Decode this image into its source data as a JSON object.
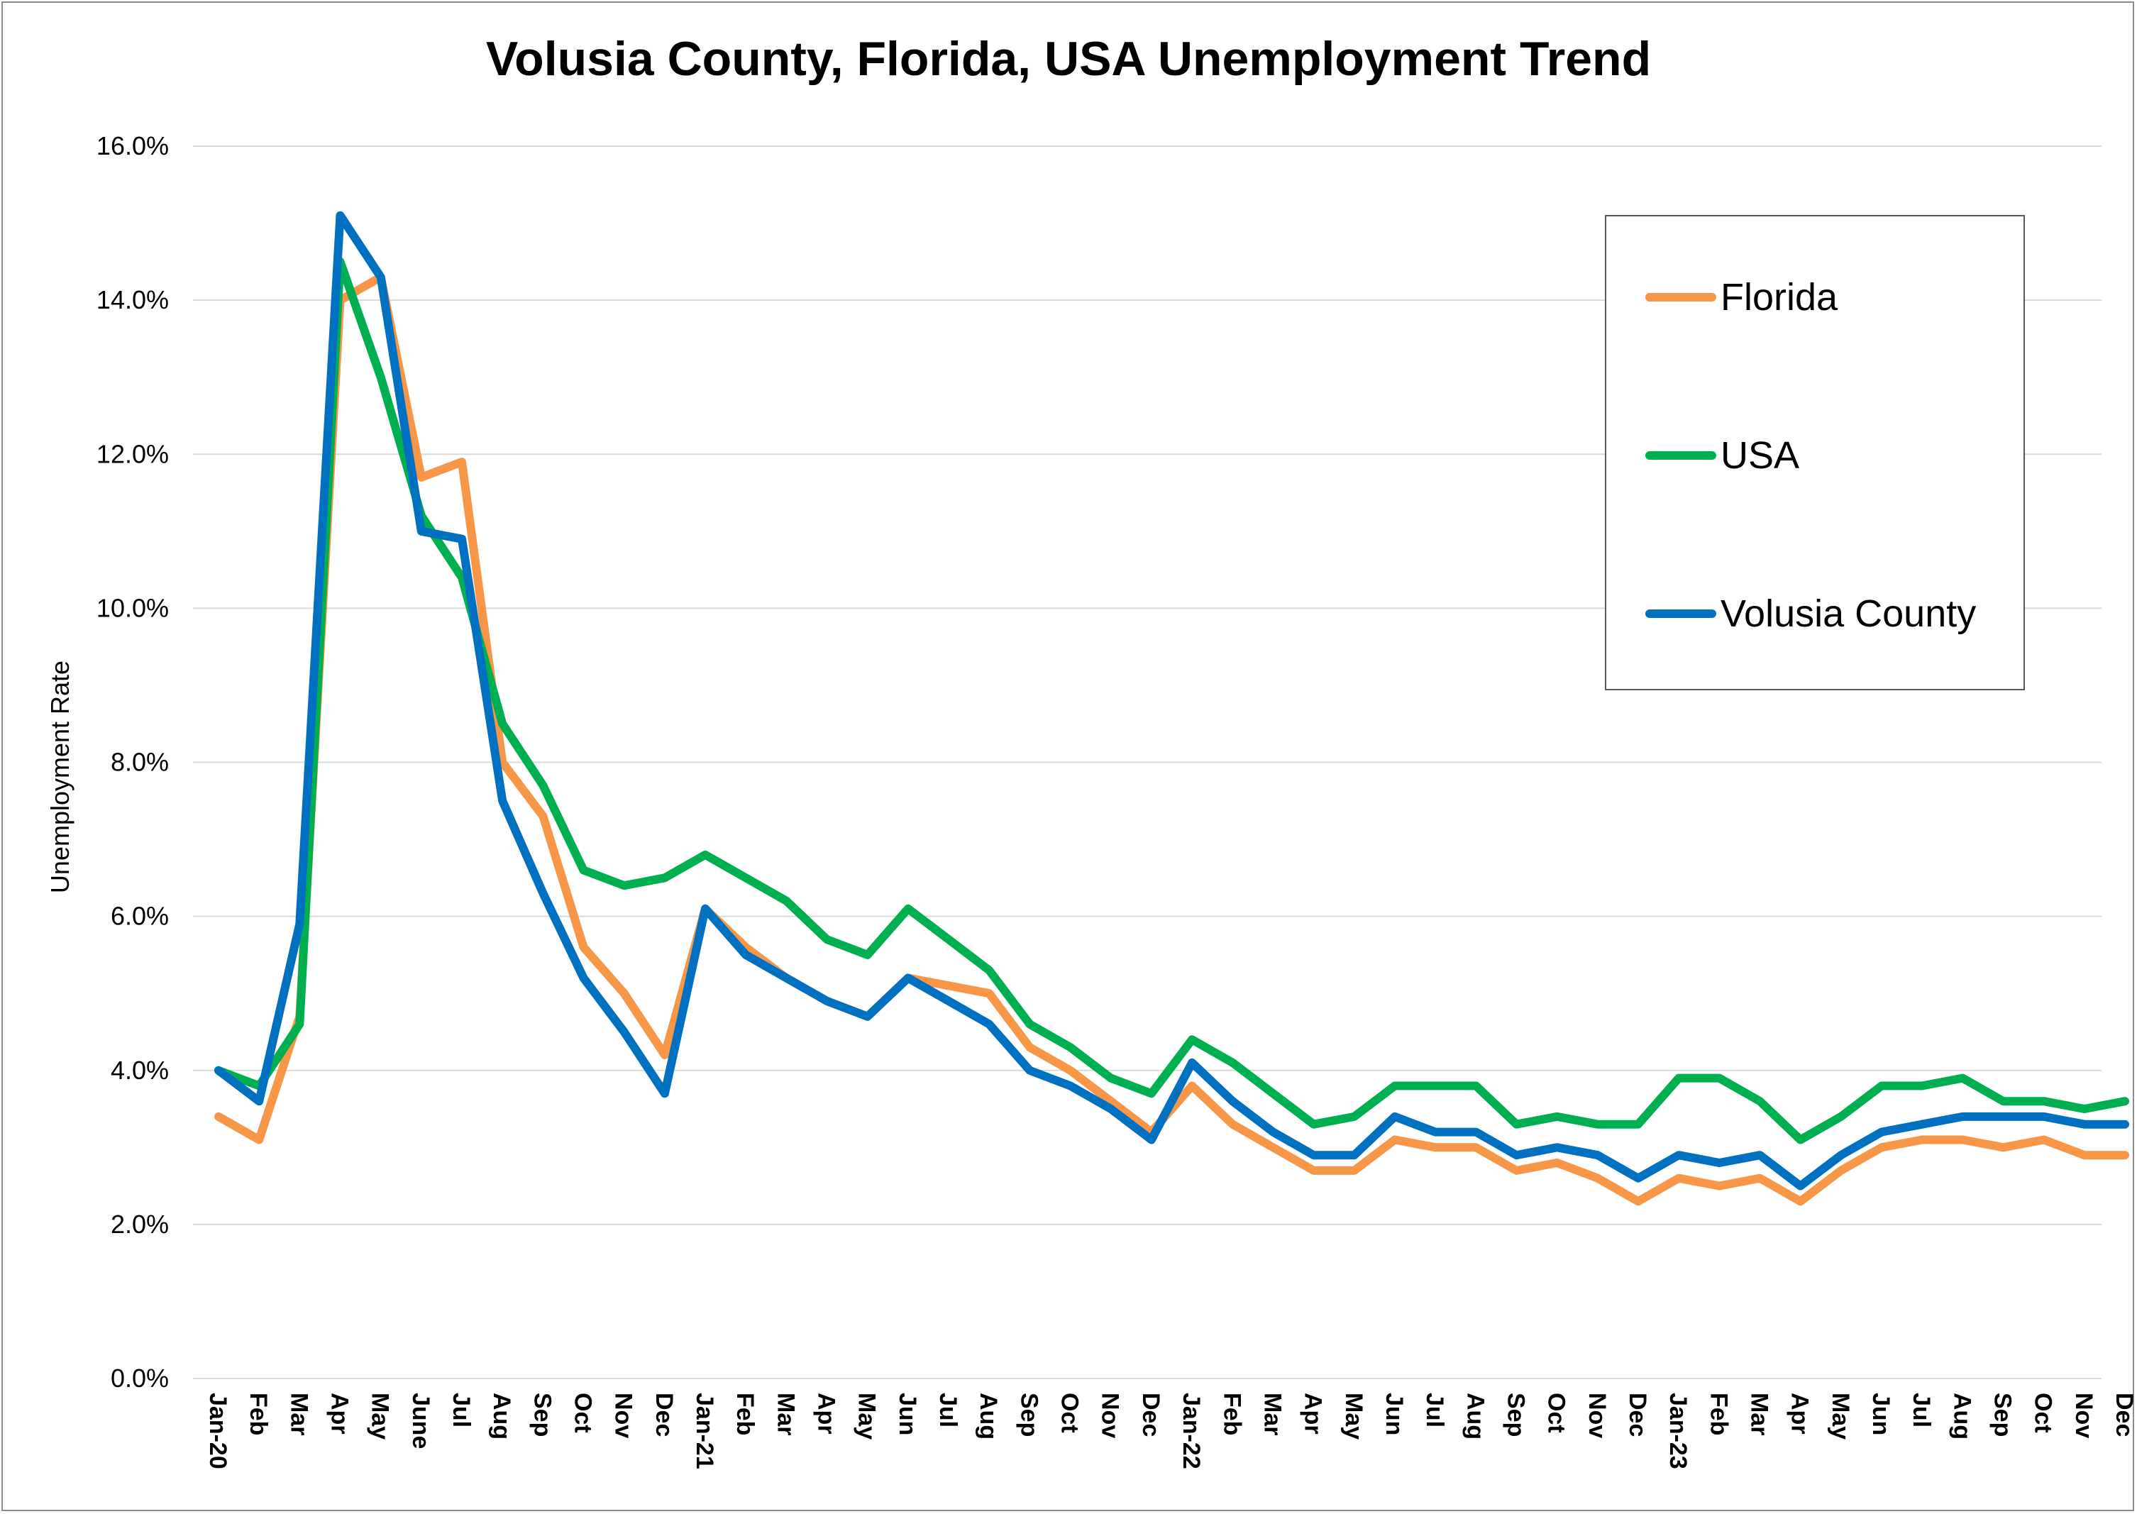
{
  "chart_data": {
    "type": "line",
    "title": "Volusia County, Florida, USA Unemployment Trend",
    "xlabel": "",
    "ylabel": "Unemployment Rate",
    "ylim": [
      0,
      16
    ],
    "yticks": [
      "0.0%",
      "2.0%",
      "4.0%",
      "6.0%",
      "8.0%",
      "10.0%",
      "12.0%",
      "14.0%",
      "16.0%"
    ],
    "grid": true,
    "legend_position": "top-right",
    "categories": [
      "Jan-20",
      "Feb",
      "Mar",
      "Apr",
      "May",
      "June",
      "Jul",
      "Aug",
      "Sep",
      "Oct",
      "Nov",
      "Dec",
      "Jan-21",
      "Feb",
      "Mar",
      "Apr",
      "May",
      "Jun",
      "Jul",
      "Aug",
      "Sep",
      "Oct",
      "Nov",
      "Dec",
      "Jan-22",
      "Feb",
      "Mar",
      "Apr",
      "May",
      "Jun",
      "Jul",
      "Aug",
      "Sep",
      "Oct",
      "Nov",
      "Dec",
      "Jan-23",
      "Feb",
      "Mar",
      "Apr",
      "May",
      "Jun",
      "Jul",
      "Aug",
      "Sep",
      "Oct",
      "Nov",
      "Dec"
    ],
    "series": [
      {
        "name": "Florida",
        "color": "#F79646",
        "values": [
          3.4,
          3.1,
          4.7,
          14.0,
          14.3,
          11.7,
          11.9,
          8.0,
          7.3,
          5.6,
          5.0,
          4.2,
          6.1,
          5.6,
          5.2,
          4.9,
          4.7,
          5.2,
          5.1,
          5.0,
          4.3,
          4.0,
          3.6,
          3.2,
          3.8,
          3.3,
          3.0,
          2.7,
          2.7,
          3.1,
          3.0,
          3.0,
          2.7,
          2.8,
          2.6,
          2.3,
          2.6,
          2.5,
          2.6,
          2.3,
          2.7,
          3.0,
          3.1,
          3.1,
          3.0,
          3.1,
          2.9,
          2.9
        ]
      },
      {
        "name": "USA",
        "color": "#00B050",
        "values": [
          4.0,
          3.8,
          4.6,
          14.5,
          13.0,
          11.2,
          10.4,
          8.5,
          7.7,
          6.6,
          6.4,
          6.5,
          6.8,
          6.5,
          6.2,
          5.7,
          5.5,
          6.1,
          5.7,
          5.3,
          4.6,
          4.3,
          3.9,
          3.7,
          4.4,
          4.1,
          3.7,
          3.3,
          3.4,
          3.8,
          3.8,
          3.8,
          3.3,
          3.4,
          3.3,
          3.3,
          3.9,
          3.9,
          3.6,
          3.1,
          3.4,
          3.8,
          3.8,
          3.9,
          3.6,
          3.6,
          3.5,
          3.6
        ]
      },
      {
        "name": "Volusia County",
        "color": "#0070C0",
        "values": [
          4.0,
          3.6,
          5.9,
          15.1,
          14.3,
          11.0,
          10.9,
          7.5,
          6.3,
          5.2,
          4.5,
          3.7,
          6.1,
          5.5,
          5.2,
          4.9,
          4.7,
          5.2,
          4.9,
          4.6,
          4.0,
          3.8,
          3.5,
          3.1,
          4.1,
          3.6,
          3.2,
          2.9,
          2.9,
          3.4,
          3.2,
          3.2,
          2.9,
          3.0,
          2.9,
          2.6,
          2.9,
          2.8,
          2.9,
          2.5,
          2.9,
          3.2,
          3.3,
          3.4,
          3.4,
          3.4,
          3.3,
          3.3
        ]
      }
    ]
  }
}
